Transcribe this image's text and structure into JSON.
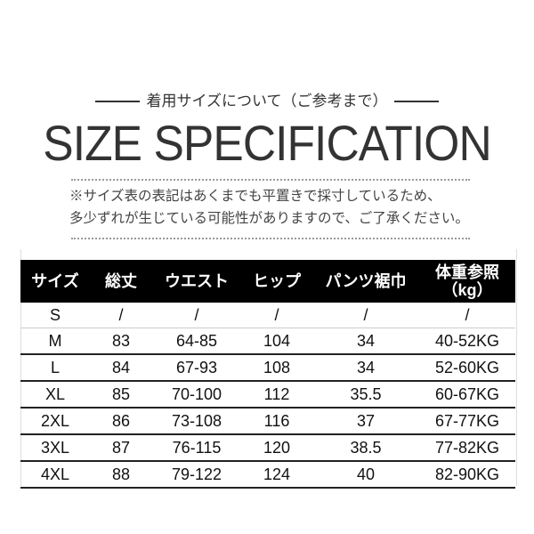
{
  "header": {
    "subtitle": "着用サイズについて（ご参考まで）",
    "title": "SIZE SPECIFICATION"
  },
  "notes": {
    "line1": "※サイズ表の表記はあくまでも平置きで採寸しているため、",
    "line2": "多少ずれが生じている可能性がありますので、ご了承ください。"
  },
  "table": {
    "columns": [
      "サイズ",
      "総丈",
      "ウエスト",
      "ヒップ",
      "パンツ裾巾",
      "体重参照",
      "（kg）"
    ],
    "rows": [
      [
        "S",
        "/",
        "/",
        "/",
        "/",
        "/"
      ],
      [
        "M",
        "83",
        "64-85",
        "104",
        "34",
        "40-52KG"
      ],
      [
        "L",
        "84",
        "67-93",
        "108",
        "34",
        "52-60KG"
      ],
      [
        "XL",
        "85",
        "70-100",
        "112",
        "35.5",
        "60-67KG"
      ],
      [
        "2XL",
        "86",
        "73-108",
        "116",
        "37",
        "67-77KG"
      ],
      [
        "3XL",
        "87",
        "76-115",
        "120",
        "38.5",
        "77-82KG"
      ],
      [
        "4XL",
        "88",
        "79-122",
        "124",
        "40",
        "82-90KG"
      ]
    ]
  }
}
